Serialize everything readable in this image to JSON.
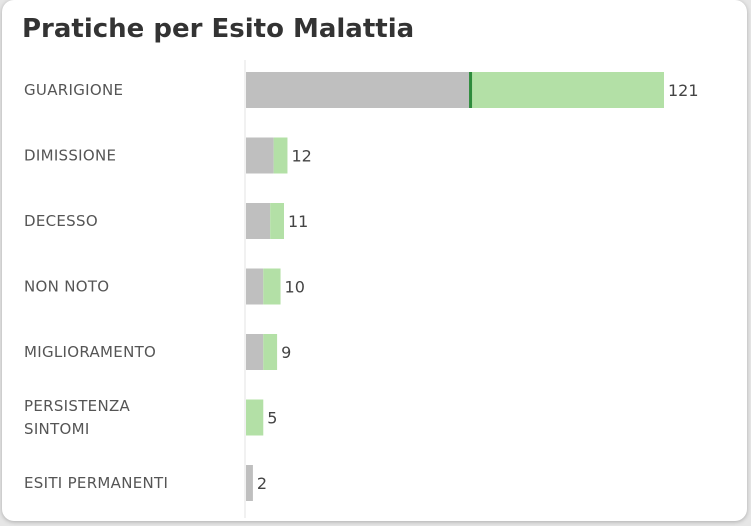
{
  "title": "Pratiche per Esito Malattia",
  "colors": {
    "part_a": "#bfbfbf",
    "part_b": "#b3e0a6",
    "divider_highlight": "#2e8b3c",
    "axis": "#e3e3e3"
  },
  "chart_data": {
    "type": "bar",
    "orientation": "horizontal",
    "stacked": true,
    "title": "Pratiche per Esito Malattia",
    "categories": [
      [
        "GUARIGIONE"
      ],
      [
        "DIMISSIONE"
      ],
      [
        "DECESSO"
      ],
      [
        "NON NOTO"
      ],
      [
        "MIGLIORAMENTO"
      ],
      [
        "PERSISTENZA",
        "SINTOMI"
      ],
      [
        "ESITI PERMANENTI"
      ]
    ],
    "series": [
      {
        "color": "#bfbfbf",
        "values": [
          65,
          8,
          7,
          5,
          5,
          0,
          2
        ]
      },
      {
        "color": "#b3e0a6",
        "values": [
          56,
          4,
          4,
          5,
          4,
          5,
          0
        ]
      }
    ],
    "totals": [
      "121",
      "12",
      "11",
      "10",
      "9",
      "5",
      "2"
    ],
    "xlim": [
      0,
      121
    ],
    "grid": false,
    "legend": "none"
  }
}
